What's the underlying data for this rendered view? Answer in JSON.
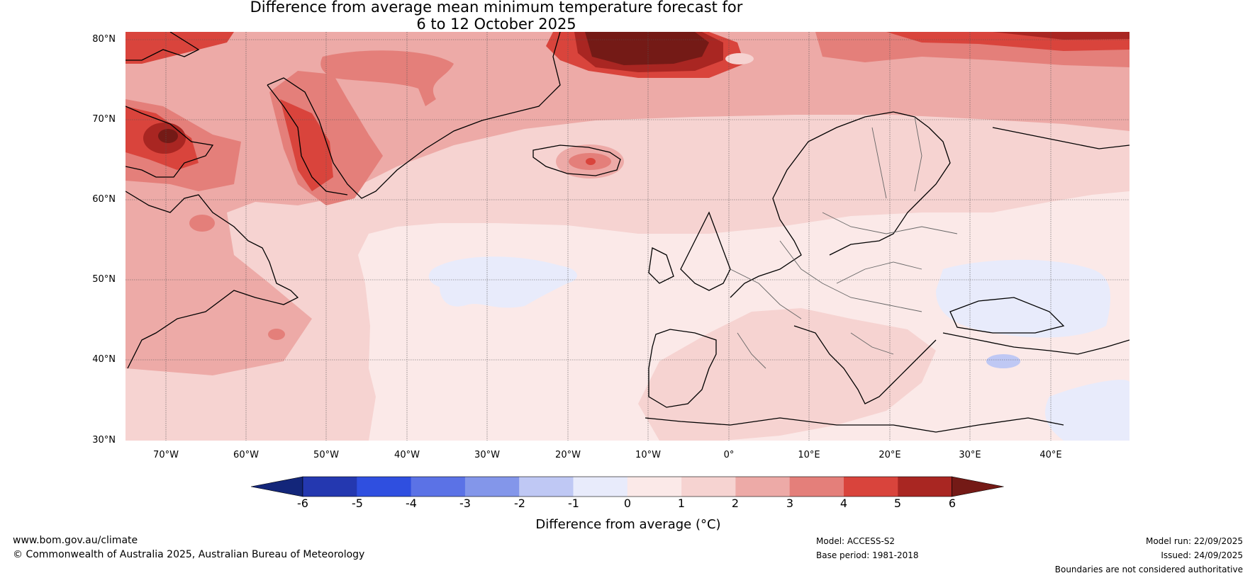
{
  "title": {
    "line1": "Difference from average mean minimum temperature forecast for",
    "line2": "6 to 12 October 2025"
  },
  "map": {
    "latitude_labels": [
      "80°N",
      "70°N",
      "60°N",
      "50°N",
      "40°N",
      "30°N"
    ],
    "longitude_labels": [
      "70°W",
      "60°W",
      "50°W",
      "40°W",
      "30°W",
      "20°W",
      "10°W",
      "0°",
      "10°E",
      "20°E",
      "30°E",
      "40°E"
    ]
  },
  "colorbar": {
    "ticks": [
      "-6",
      "-5",
      "-4",
      "-3",
      "-2",
      "-1",
      "0",
      "1",
      "2",
      "3",
      "4",
      "5",
      "6"
    ],
    "label": "Difference from average (°C)",
    "colors": [
      "#13267a",
      "#2438b0",
      "#2f4fe0",
      "#5b72e6",
      "#8396ea",
      "#bfc8f4",
      "#e8ebfb",
      "#fbe9e8",
      "#f6d3d1",
      "#edaaa7",
      "#e47f7a",
      "#d9443c",
      "#a92622",
      "#741a16"
    ]
  },
  "footer": {
    "website": "www.bom.gov.au/climate",
    "copyright": "© Commonwealth of Australia 2025, Australian Bureau of Meteorology",
    "model": "Model: ACCESS-S2",
    "base_period": "Base period: 1981-2018",
    "model_run": "Model run: 22/09/2025",
    "issued": "Issued: 24/09/2025",
    "disclaimer": "Boundaries are not considered authoritative"
  }
}
